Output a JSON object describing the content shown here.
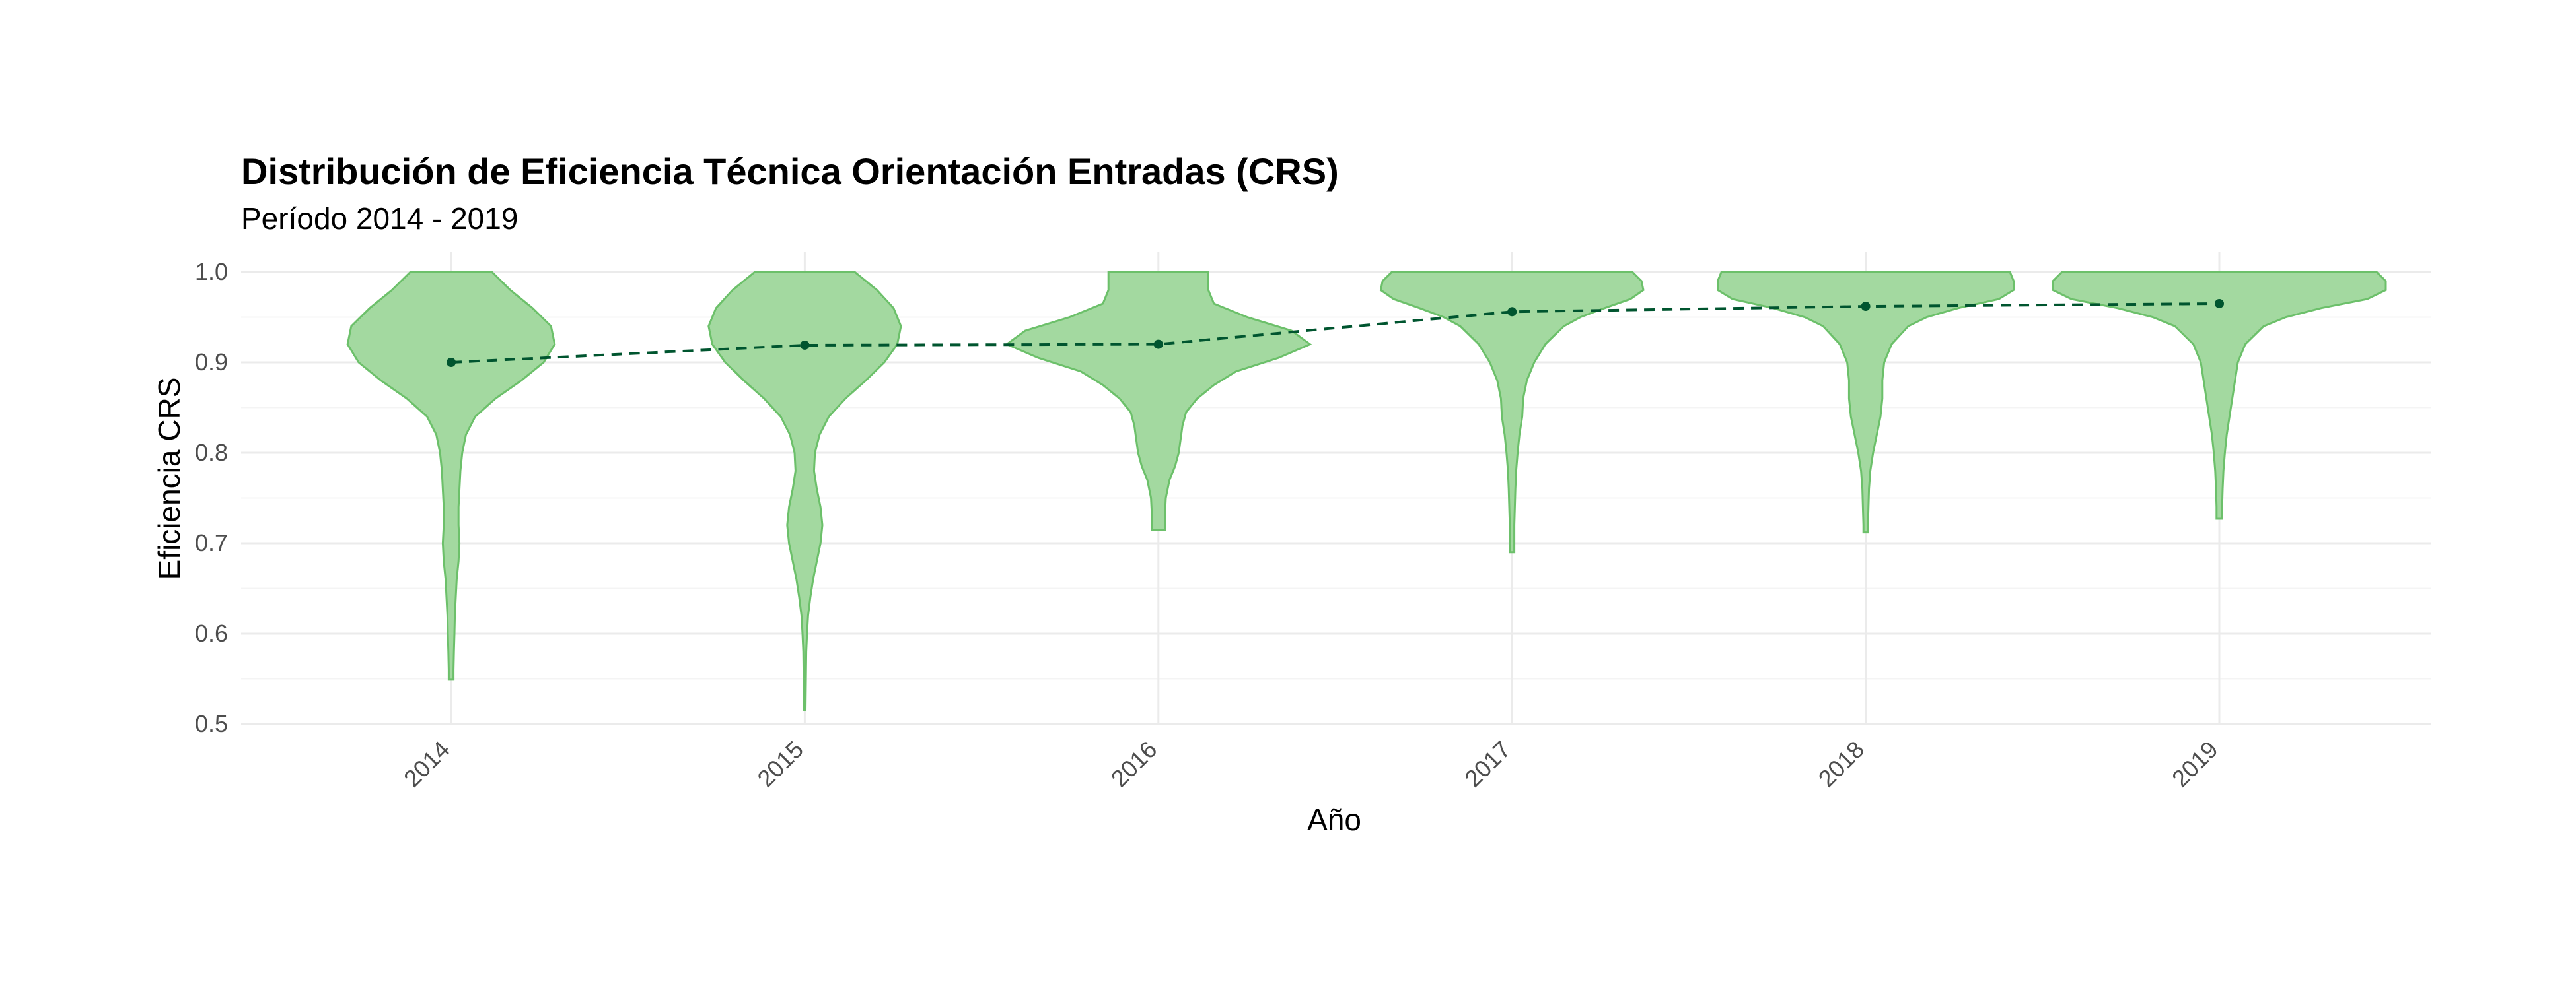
{
  "chart_data": {
    "type": "violin",
    "title": "Distribución de Eficiencia Técnica Orientación Entradas (CRS)",
    "subtitle": "Período 2014 - 2019",
    "xlabel": "Año",
    "ylabel": "Eficiencia CRS",
    "ylim": [
      0.5,
      1.0
    ],
    "yticks": [
      "0.5",
      "0.6",
      "0.7",
      "0.8",
      "0.9",
      "1.0"
    ],
    "grid": true,
    "categories": [
      "2014",
      "2015",
      "2016",
      "2017",
      "2018",
      "2019"
    ],
    "means": [
      0.9,
      0.919,
      0.92,
      0.956,
      0.962,
      0.965
    ],
    "colors": {
      "fill": "#a3d9a0",
      "outline": "#6cc06a",
      "mean": "#00552f"
    },
    "violins": [
      {
        "year": "2014",
        "range": [
          0.549,
          1.0
        ],
        "profile": [
          [
            1.0,
            0.22
          ],
          [
            0.98,
            0.32
          ],
          [
            0.96,
            0.44
          ],
          [
            0.94,
            0.54
          ],
          [
            0.92,
            0.56
          ],
          [
            0.9,
            0.5
          ],
          [
            0.88,
            0.38
          ],
          [
            0.86,
            0.24
          ],
          [
            0.84,
            0.13
          ],
          [
            0.82,
            0.08
          ],
          [
            0.8,
            0.06
          ],
          [
            0.78,
            0.05
          ],
          [
            0.76,
            0.045
          ],
          [
            0.74,
            0.04
          ],
          [
            0.72,
            0.04
          ],
          [
            0.7,
            0.045
          ],
          [
            0.68,
            0.04
          ],
          [
            0.66,
            0.03
          ],
          [
            0.64,
            0.025
          ],
          [
            0.62,
            0.02
          ],
          [
            0.6,
            0.018
          ],
          [
            0.58,
            0.015
          ],
          [
            0.56,
            0.013
          ],
          [
            0.549,
            0.013
          ]
        ]
      },
      {
        "year": "2015",
        "range": [
          0.515,
          1.0
        ],
        "profile": [
          [
            1.0,
            0.27
          ],
          [
            0.98,
            0.39
          ],
          [
            0.96,
            0.48
          ],
          [
            0.94,
            0.52
          ],
          [
            0.92,
            0.5
          ],
          [
            0.9,
            0.43
          ],
          [
            0.88,
            0.33
          ],
          [
            0.86,
            0.22
          ],
          [
            0.84,
            0.13
          ],
          [
            0.82,
            0.08
          ],
          [
            0.8,
            0.055
          ],
          [
            0.78,
            0.05
          ],
          [
            0.76,
            0.065
          ],
          [
            0.74,
            0.085
          ],
          [
            0.72,
            0.095
          ],
          [
            0.7,
            0.085
          ],
          [
            0.68,
            0.065
          ],
          [
            0.66,
            0.045
          ],
          [
            0.64,
            0.03
          ],
          [
            0.62,
            0.018
          ],
          [
            0.6,
            0.012
          ],
          [
            0.58,
            0.008
          ],
          [
            0.55,
            0.006
          ],
          [
            0.515,
            0.004
          ]
        ]
      },
      {
        "year": "2016",
        "range": [
          0.715,
          1.0
        ],
        "profile": [
          [
            1.0,
            0.27
          ],
          [
            0.98,
            0.27
          ],
          [
            0.965,
            0.3
          ],
          [
            0.95,
            0.48
          ],
          [
            0.935,
            0.72
          ],
          [
            0.92,
            0.82
          ],
          [
            0.905,
            0.65
          ],
          [
            0.89,
            0.42
          ],
          [
            0.875,
            0.3
          ],
          [
            0.86,
            0.21
          ],
          [
            0.845,
            0.15
          ],
          [
            0.83,
            0.13
          ],
          [
            0.815,
            0.12
          ],
          [
            0.8,
            0.11
          ],
          [
            0.785,
            0.09
          ],
          [
            0.77,
            0.06
          ],
          [
            0.75,
            0.04
          ],
          [
            0.73,
            0.035
          ],
          [
            0.715,
            0.035
          ]
        ]
      },
      {
        "year": "2017",
        "range": [
          0.69,
          1.0
        ],
        "profile": [
          [
            1.0,
            0.65
          ],
          [
            0.99,
            0.7
          ],
          [
            0.98,
            0.71
          ],
          [
            0.97,
            0.64
          ],
          [
            0.96,
            0.5
          ],
          [
            0.95,
            0.37
          ],
          [
            0.94,
            0.28
          ],
          [
            0.92,
            0.18
          ],
          [
            0.9,
            0.12
          ],
          [
            0.88,
            0.08
          ],
          [
            0.86,
            0.06
          ],
          [
            0.84,
            0.055
          ],
          [
            0.82,
            0.04
          ],
          [
            0.8,
            0.03
          ],
          [
            0.78,
            0.022
          ],
          [
            0.76,
            0.018
          ],
          [
            0.74,
            0.015
          ],
          [
            0.72,
            0.012
          ],
          [
            0.7,
            0.012
          ],
          [
            0.69,
            0.012
          ]
        ]
      },
      {
        "year": "2018",
        "range": [
          0.712,
          1.0
        ],
        "profile": [
          [
            1.0,
            0.78
          ],
          [
            0.99,
            0.8
          ],
          [
            0.98,
            0.8
          ],
          [
            0.97,
            0.72
          ],
          [
            0.96,
            0.5
          ],
          [
            0.95,
            0.33
          ],
          [
            0.94,
            0.23
          ],
          [
            0.92,
            0.14
          ],
          [
            0.9,
            0.1
          ],
          [
            0.88,
            0.09
          ],
          [
            0.86,
            0.09
          ],
          [
            0.84,
            0.08
          ],
          [
            0.82,
            0.06
          ],
          [
            0.8,
            0.04
          ],
          [
            0.78,
            0.025
          ],
          [
            0.76,
            0.018
          ],
          [
            0.74,
            0.015
          ],
          [
            0.72,
            0.012
          ],
          [
            0.712,
            0.012
          ]
        ]
      },
      {
        "year": "2019",
        "range": [
          0.727,
          1.0
        ],
        "profile": [
          [
            1.0,
            0.85
          ],
          [
            0.99,
            0.9
          ],
          [
            0.98,
            0.9
          ],
          [
            0.97,
            0.8
          ],
          [
            0.96,
            0.55
          ],
          [
            0.95,
            0.36
          ],
          [
            0.94,
            0.24
          ],
          [
            0.92,
            0.14
          ],
          [
            0.9,
            0.1
          ],
          [
            0.88,
            0.085
          ],
          [
            0.86,
            0.07
          ],
          [
            0.84,
            0.055
          ],
          [
            0.82,
            0.04
          ],
          [
            0.8,
            0.03
          ],
          [
            0.78,
            0.022
          ],
          [
            0.76,
            0.018
          ],
          [
            0.74,
            0.015
          ],
          [
            0.727,
            0.015
          ]
        ]
      }
    ]
  }
}
